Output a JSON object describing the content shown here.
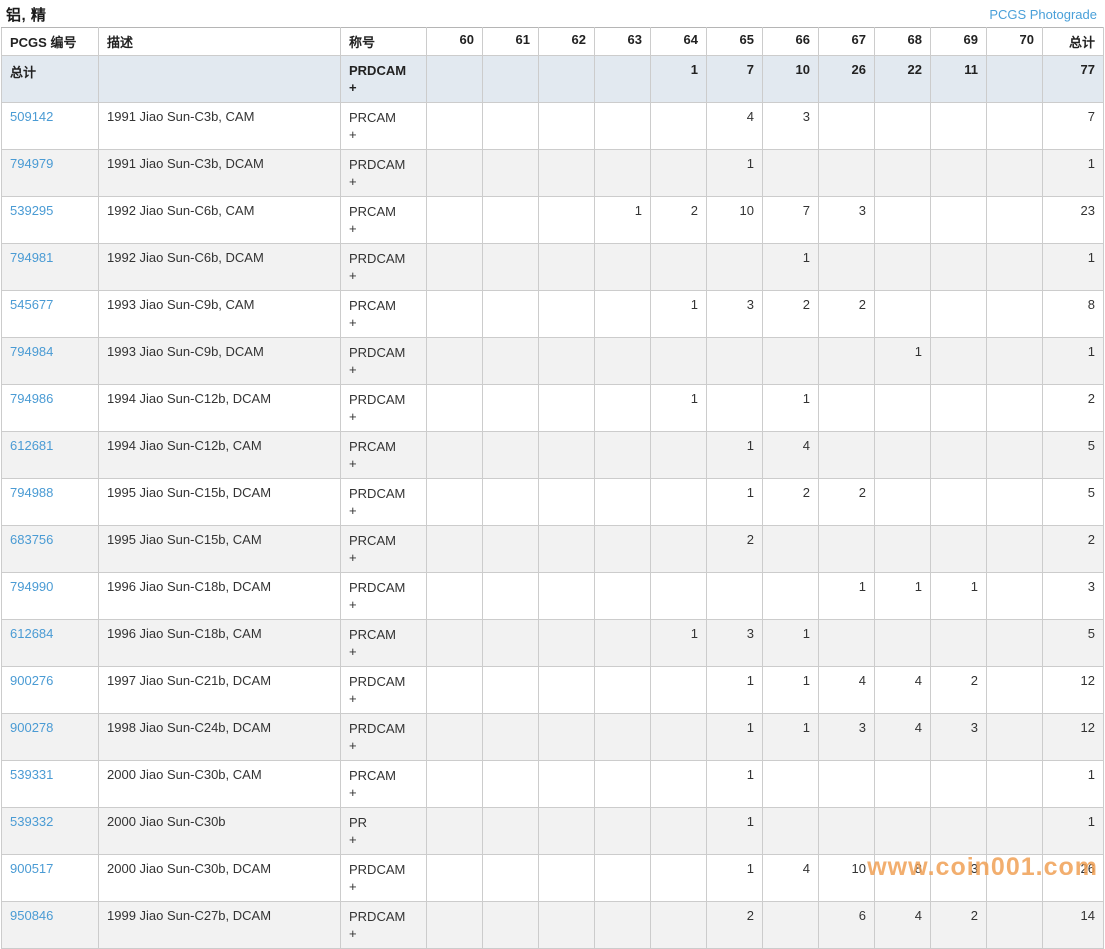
{
  "page": {
    "title": "铝, 精",
    "photograde_link": "PCGS Photograde",
    "watermark": "www.coin001.com"
  },
  "colors": {
    "link_blue": "#4a9bd4",
    "photograde_blue": "#4aa0d9",
    "totals_row_bg": "#e2e9f0",
    "stripe_bg": "#f2f2f2",
    "watermark_orange": "#f0a055"
  },
  "table": {
    "headers": {
      "id": "PCGS 编号",
      "description": "描述",
      "designation": "称号",
      "grades": [
        "60",
        "61",
        "62",
        "63",
        "64",
        "65",
        "66",
        "67",
        "68",
        "69",
        "70"
      ],
      "total": "总计"
    },
    "totals_row": {
      "label": "总计",
      "designation_lines": [
        "PRDCAM",
        "+"
      ],
      "values": [
        "",
        "",
        "",
        "",
        "1",
        "7",
        "10",
        "26",
        "22",
        "11",
        ""
      ],
      "total": "77"
    },
    "rows": [
      {
        "id": "509142",
        "description": "1991 Jiao Sun-C3b, CAM",
        "designation_lines": [
          "PRCAM",
          "+"
        ],
        "values": [
          "",
          "",
          "",
          "",
          "",
          "4",
          "3",
          "",
          "",
          "",
          ""
        ],
        "total": "7"
      },
      {
        "id": "794979",
        "description": "1991 Jiao Sun-C3b, DCAM",
        "designation_lines": [
          "PRDCAM",
          "+"
        ],
        "values": [
          "",
          "",
          "",
          "",
          "",
          "1",
          "",
          "",
          "",
          "",
          ""
        ],
        "total": "1"
      },
      {
        "id": "539295",
        "description": "1992 Jiao Sun-C6b, CAM",
        "designation_lines": [
          "PRCAM",
          "+"
        ],
        "values": [
          "",
          "",
          "",
          "1",
          "2",
          "10",
          "7",
          "3",
          "",
          "",
          ""
        ],
        "total": "23"
      },
      {
        "id": "794981",
        "description": "1992 Jiao Sun-C6b, DCAM",
        "designation_lines": [
          "PRDCAM",
          "+"
        ],
        "values": [
          "",
          "",
          "",
          "",
          "",
          "",
          "1",
          "",
          "",
          "",
          ""
        ],
        "total": "1"
      },
      {
        "id": "545677",
        "description": "1993 Jiao Sun-C9b, CAM",
        "designation_lines": [
          "PRCAM",
          "+"
        ],
        "values": [
          "",
          "",
          "",
          "",
          "1",
          "3",
          "2",
          "2",
          "",
          "",
          ""
        ],
        "total": "8"
      },
      {
        "id": "794984",
        "description": "1993 Jiao Sun-C9b, DCAM",
        "designation_lines": [
          "PRDCAM",
          "+"
        ],
        "values": [
          "",
          "",
          "",
          "",
          "",
          "",
          "",
          "",
          "1",
          "",
          ""
        ],
        "total": "1"
      },
      {
        "id": "794986",
        "description": "1994 Jiao Sun-C12b, DCAM",
        "designation_lines": [
          "PRDCAM",
          "+"
        ],
        "values": [
          "",
          "",
          "",
          "",
          "1",
          "",
          "1",
          "",
          "",
          "",
          ""
        ],
        "total": "2"
      },
      {
        "id": "612681",
        "description": "1994 Jiao Sun-C12b, CAM",
        "designation_lines": [
          "PRCAM",
          "+"
        ],
        "values": [
          "",
          "",
          "",
          "",
          "",
          "1",
          "4",
          "",
          "",
          "",
          ""
        ],
        "total": "5"
      },
      {
        "id": "794988",
        "description": "1995 Jiao Sun-C15b, DCAM",
        "designation_lines": [
          "PRDCAM",
          "+"
        ],
        "values": [
          "",
          "",
          "",
          "",
          "",
          "1",
          "2",
          "2",
          "",
          "",
          ""
        ],
        "total": "5"
      },
      {
        "id": "683756",
        "description": "1995 Jiao Sun-C15b, CAM",
        "designation_lines": [
          "PRCAM",
          "+"
        ],
        "values": [
          "",
          "",
          "",
          "",
          "",
          "2",
          "",
          "",
          "",
          "",
          ""
        ],
        "total": "2"
      },
      {
        "id": "794990",
        "description": "1996 Jiao Sun-C18b, DCAM",
        "designation_lines": [
          "PRDCAM",
          "+"
        ],
        "values": [
          "",
          "",
          "",
          "",
          "",
          "",
          "",
          "1",
          "1",
          "1",
          ""
        ],
        "total": "3"
      },
      {
        "id": "612684",
        "description": "1996 Jiao Sun-C18b, CAM",
        "designation_lines": [
          "PRCAM",
          "+"
        ],
        "values": [
          "",
          "",
          "",
          "",
          "1",
          "3",
          "1",
          "",
          "",
          "",
          ""
        ],
        "total": "5"
      },
      {
        "id": "900276",
        "description": "1997 Jiao Sun-C21b, DCAM",
        "designation_lines": [
          "PRDCAM",
          "+"
        ],
        "values": [
          "",
          "",
          "",
          "",
          "",
          "1",
          "1",
          "4",
          "4",
          "2",
          ""
        ],
        "total": "12"
      },
      {
        "id": "900278",
        "description": "1998 Jiao Sun-C24b, DCAM",
        "designation_lines": [
          "PRDCAM",
          "+"
        ],
        "values": [
          "",
          "",
          "",
          "",
          "",
          "1",
          "1",
          "3",
          "4",
          "3",
          ""
        ],
        "total": "12"
      },
      {
        "id": "539331",
        "description": "2000 Jiao Sun-C30b, CAM",
        "designation_lines": [
          "PRCAM",
          "+"
        ],
        "values": [
          "",
          "",
          "",
          "",
          "",
          "1",
          "",
          "",
          "",
          "",
          ""
        ],
        "total": "1"
      },
      {
        "id": "539332",
        "description": "2000 Jiao Sun-C30b",
        "designation_lines": [
          "PR",
          "+"
        ],
        "values": [
          "",
          "",
          "",
          "",
          "",
          "1",
          "",
          "",
          "",
          "",
          ""
        ],
        "total": "1"
      },
      {
        "id": "900517",
        "description": "2000 Jiao Sun-C30b, DCAM",
        "designation_lines": [
          "PRDCAM",
          "+"
        ],
        "values": [
          "",
          "",
          "",
          "",
          "",
          "1",
          "4",
          "10",
          "8",
          "3",
          ""
        ],
        "total": "26"
      },
      {
        "id": "950846",
        "description": "1999 Jiao Sun-C27b, DCAM",
        "designation_lines": [
          "PRDCAM",
          "+"
        ],
        "values": [
          "",
          "",
          "",
          "",
          "",
          "2",
          "",
          "6",
          "4",
          "2",
          ""
        ],
        "total": "14"
      }
    ]
  }
}
